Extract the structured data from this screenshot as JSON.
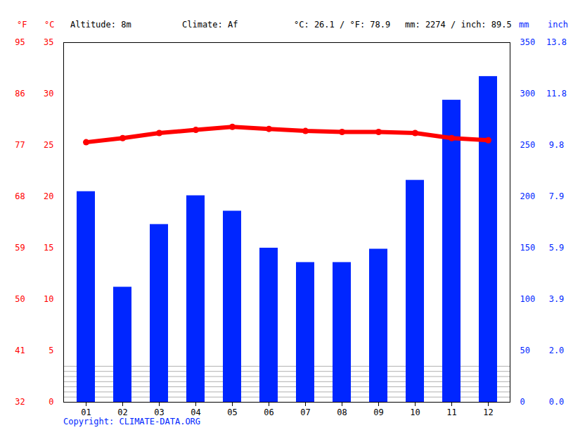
{
  "chart_data": {
    "type": "bar+line",
    "annotations": [
      "Altitude: 8m",
      "Climate: Af",
      "°C: 26.1 / °F: 78.9",
      "mm: 2274 / inch: 89.5"
    ],
    "caption": "Copyright: CLIMATE-DATA.ORG",
    "categories": [
      "01",
      "02",
      "03",
      "04",
      "05",
      "06",
      "07",
      "08",
      "09",
      "10",
      "11",
      "12"
    ],
    "series": [
      {
        "type": "bar",
        "axis": "y2",
        "color": "#0026ff",
        "values": [
          205,
          112,
          173,
          201,
          186,
          150,
          136,
          136,
          149,
          216,
          294,
          317
        ]
      },
      {
        "type": "line",
        "color": "#ff0000",
        "marker": "circle",
        "values": [
          25.3,
          25.7,
          26.2,
          26.5,
          26.8,
          26.6,
          26.4,
          26.3,
          26.3,
          26.2,
          25.7,
          25.5
        ]
      }
    ],
    "ylabel": "°C",
    "ylabel_f": "°F",
    "ylim": [
      0,
      35
    ],
    "yticks": [
      0,
      5,
      10,
      15,
      20,
      25,
      30,
      35
    ],
    "yticks_f": [
      {
        "value": 0,
        "label": "32"
      },
      {
        "value": 5,
        "label": "41"
      },
      {
        "value": 10,
        "label": "50"
      },
      {
        "value": 15,
        "label": "59"
      },
      {
        "value": 20,
        "label": "68"
      },
      {
        "value": 25,
        "label": "77"
      },
      {
        "value": 30,
        "label": "86"
      },
      {
        "value": 35,
        "label": "95"
      }
    ],
    "y2label": "mm",
    "y2label_in": "inch",
    "y2lim": [
      0,
      350
    ],
    "y2ticks": [
      0,
      50,
      100,
      150,
      200,
      250,
      300,
      350
    ],
    "y2ticks_in": [
      {
        "value": 0,
        "label": "0.0"
      },
      {
        "value": 50,
        "label": "2.0"
      },
      {
        "value": 100,
        "label": "3.9"
      },
      {
        "value": 150,
        "label": "5.9"
      },
      {
        "value": 200,
        "label": "7.9"
      },
      {
        "value": 250,
        "label": "9.8"
      },
      {
        "value": 300,
        "label": "11.8"
      },
      {
        "value": 350,
        "label": "13.8"
      }
    ],
    "grid": true
  }
}
